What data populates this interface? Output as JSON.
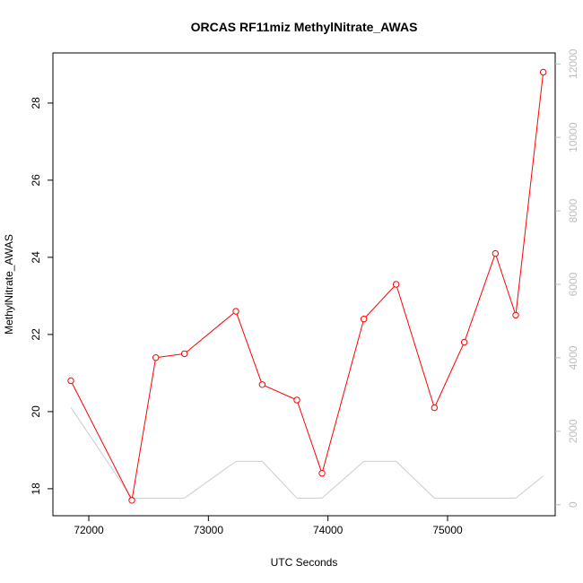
{
  "chart_data": {
    "type": "line",
    "title": "ORCAS RF11miz MethylNitrate_AWAS",
    "xlabel": "UTC Seconds",
    "ylabel": "MethylNitrate_AWAS",
    "xlim": [
      71700,
      75900
    ],
    "ylim": [
      17.3,
      29.3
    ],
    "y2lim": [
      -300,
      12300
    ],
    "x_ticks": [
      72000,
      73000,
      74000,
      75000
    ],
    "y_ticks": [
      18,
      20,
      22,
      24,
      26,
      28
    ],
    "y2_ticks": [
      0,
      2000,
      4000,
      6000,
      8000,
      10000,
      12000
    ],
    "grid": false,
    "series": [
      {
        "axis": "left",
        "color": "#ff0000",
        "markers": "open-circle",
        "x": [
          71850,
          72360,
          72560,
          72800,
          73230,
          73450,
          73740,
          73950,
          74300,
          74570,
          74890,
          75140,
          75400,
          75570,
          75800
        ],
        "y": [
          20.8,
          17.7,
          21.4,
          21.5,
          22.6,
          20.7,
          20.3,
          18.4,
          22.4,
          23.3,
          20.1,
          21.8,
          24.1,
          22.5,
          28.8
        ]
      },
      {
        "axis": "right",
        "color": "#c8ccd8",
        "markers": "none",
        "x": [
          71850,
          72360,
          72560,
          72800,
          73230,
          73450,
          73740,
          73950,
          74300,
          74570,
          74890,
          75140,
          75400,
          75570,
          75800
        ],
        "y": [
          2650,
          180,
          180,
          180,
          1180,
          1180,
          180,
          180,
          1180,
          1180,
          180,
          180,
          180,
          180,
          780
        ]
      }
    ]
  }
}
